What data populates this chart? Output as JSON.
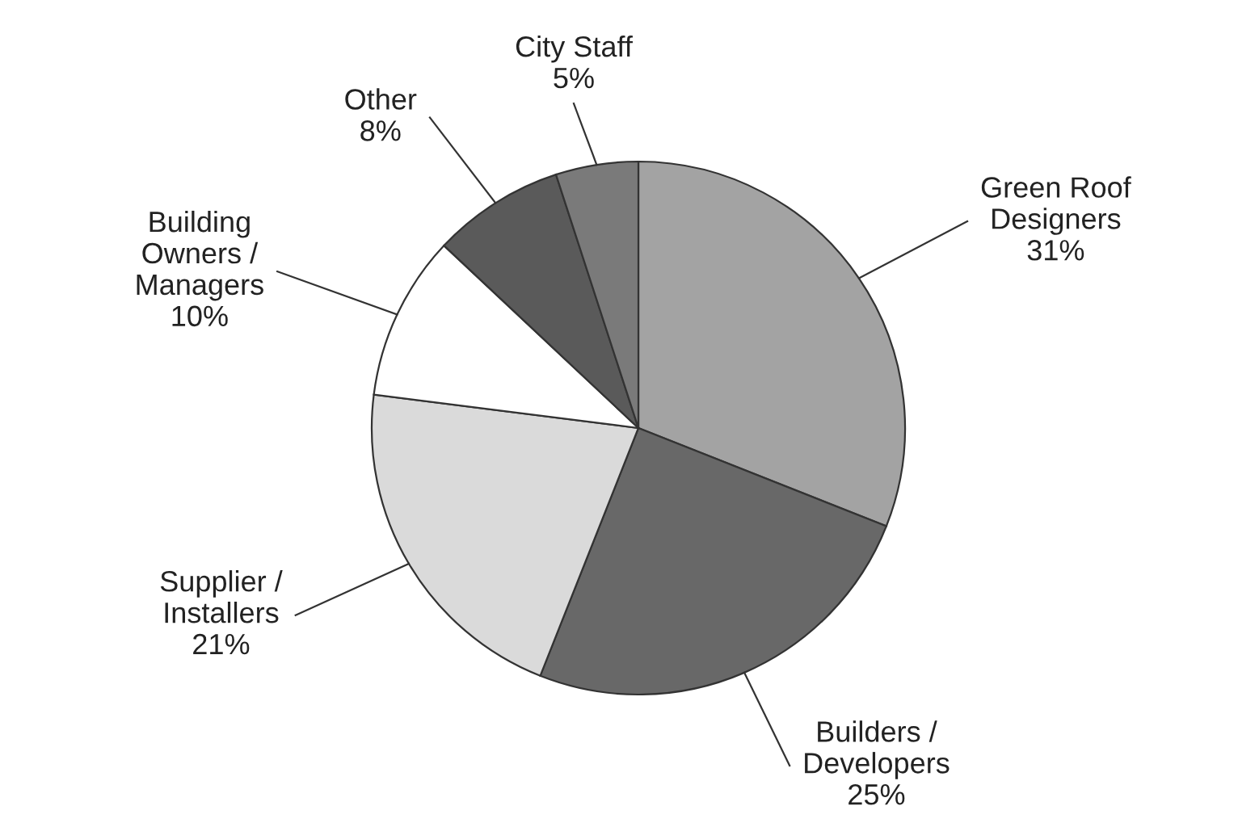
{
  "chart_data": {
    "type": "pie",
    "categories": [
      "Green Roof Designers",
      "Builders / Developers",
      "Supplier / Installers",
      "Building Owners / Managers",
      "Other",
      "City Staff"
    ],
    "values": [
      31,
      25,
      21,
      10,
      8,
      5
    ],
    "value_labels": [
      "31%",
      "25%",
      "21%",
      "10%",
      "8%",
      "5%"
    ],
    "colors": [
      "#a3a3a3",
      "#686868",
      "#dadada",
      "#ffffff",
      "#5a5a5a",
      "#7a7a7a"
    ],
    "legend": false
  }
}
